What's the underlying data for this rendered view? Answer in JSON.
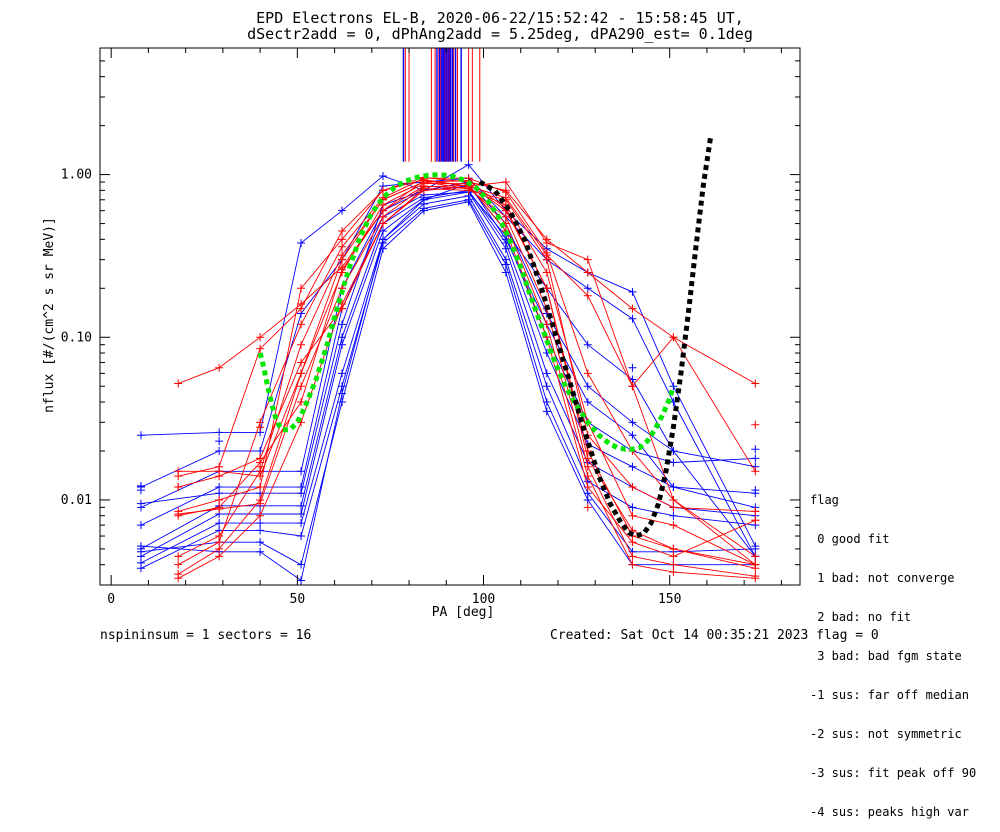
{
  "chart_data": {
    "type": "scatter",
    "title": "EPD Electrons EL-B, 2020-06-22/15:52:42 - 15:58:45 UT,",
    "subtitle": "dSectr2add = 0, dPhAng2add = 5.25deg, dPA290_est=   0.1deg",
    "xlabel": "PA [deg]",
    "ylabel": "nflux [#/(cm^2 s sr MeV)]",
    "xlim": [
      -3,
      185
    ],
    "ylim": [
      0.003,
      6.0
    ],
    "yscale": "log",
    "xticks": [
      0,
      50,
      100,
      150
    ],
    "yticks": [
      {
        "value": 1.0,
        "label": "1.00"
      },
      {
        "value": 0.1,
        "label": "0.10"
      },
      {
        "value": 0.01,
        "label": "0.01"
      }
    ],
    "colors": {
      "red": "#ff0000",
      "blue": "#0000ff",
      "green": "#00e600",
      "black": "#000000"
    },
    "series": [
      {
        "color": "red",
        "x": [
          18,
          29,
          40,
          51,
          62,
          73,
          84,
          96,
          106,
          117,
          128,
          140,
          151,
          173
        ],
        "y": [
          0.052,
          0.065,
          0.1,
          0.16,
          0.27,
          0.6,
          0.92,
          0.85,
          0.72,
          0.32,
          0.18,
          0.05,
          0.1,
          0.052
        ]
      },
      {
        "color": "red",
        "x": [
          18,
          29,
          40,
          51,
          62,
          73,
          84,
          96,
          106,
          117,
          128,
          140,
          151,
          173
        ],
        "y": [
          0.0085,
          0.01,
          0.012,
          0.2,
          0.4,
          0.8,
          0.96,
          0.9,
          0.8,
          0.4,
          0.25,
          0.15,
          0.1,
          0.015
        ]
      },
      {
        "color": "red",
        "x": [
          18,
          29,
          40,
          51,
          62,
          73,
          84,
          96,
          106,
          117,
          128,
          140,
          151,
          173
        ],
        "y": [
          0.014,
          0.016,
          0.085,
          0.15,
          0.45,
          0.8,
          0.93,
          0.85,
          0.9,
          0.38,
          0.3,
          0.05,
          0.01,
          0.004
        ]
      },
      {
        "color": "red",
        "x": [
          18,
          29,
          40,
          51,
          62,
          73,
          84,
          96,
          106,
          117,
          128,
          140,
          151,
          173
        ],
        "y": [
          0.0045,
          0.006,
          0.015,
          0.09,
          0.32,
          0.7,
          0.9,
          0.82,
          0.65,
          0.25,
          0.03,
          0.008,
          0.007,
          0.004
        ]
      },
      {
        "color": "red",
        "x": [
          18,
          29,
          40,
          51,
          62,
          73,
          84,
          96,
          106,
          117,
          128,
          140,
          151,
          173
        ],
        "y": [
          0.0035,
          0.005,
          0.01,
          0.06,
          0.25,
          0.65,
          0.88,
          0.88,
          0.6,
          0.2,
          0.02,
          0.006,
          0.005,
          0.0038
        ]
      },
      {
        "color": "red",
        "x": [
          18,
          29,
          40,
          51,
          62,
          73,
          84,
          96,
          106,
          117,
          128,
          140,
          151,
          173
        ],
        "y": [
          0.008,
          0.009,
          0.017,
          0.04,
          0.26,
          0.6,
          0.85,
          0.82,
          0.55,
          0.15,
          0.016,
          0.0045,
          0.004,
          0.0034
        ]
      },
      {
        "color": "red",
        "x": [
          18,
          29,
          40,
          51,
          62,
          73,
          84,
          96,
          106,
          117,
          128,
          140,
          151,
          173
        ],
        "y": [
          0.0033,
          0.0045,
          0.008,
          0.03,
          0.16,
          0.5,
          0.8,
          0.84,
          0.5,
          0.12,
          0.014,
          0.004,
          0.0036,
          0.0033
        ]
      },
      {
        "color": "red",
        "x": [
          18,
          29,
          40,
          51,
          62,
          73,
          84,
          96,
          106,
          117,
          128,
          140,
          151,
          173
        ],
        "y": [
          0.0082,
          0.0088,
          0.0095,
          0.05,
          0.2,
          0.55,
          0.84,
          0.86,
          0.45,
          0.1,
          0.012,
          0.0055,
          0.0045,
          0.0075
        ]
      },
      {
        "color": "red",
        "x": [
          18,
          29,
          40,
          51,
          62,
          73,
          84,
          96,
          106,
          117,
          128,
          140,
          151,
          173
        ],
        "y": [
          0.012,
          0.014,
          0.018,
          0.07,
          0.15,
          0.5,
          0.82,
          0.8,
          0.7,
          0.3,
          0.025,
          0.012,
          0.009,
          0.0085
        ]
      },
      {
        "color": "red",
        "x": [
          18,
          29,
          40,
          51,
          62,
          73,
          84,
          96,
          106,
          117,
          128,
          140,
          151,
          173
        ],
        "y": [
          0.015,
          0.015,
          0.014,
          0.06,
          0.3,
          0.7,
          0.9,
          0.92,
          0.62,
          0.2,
          0.018,
          0.0065,
          0.005,
          0.004
        ]
      },
      {
        "color": "red",
        "x": [
          18,
          29,
          40,
          51,
          62,
          73,
          84,
          96,
          106,
          117,
          128,
          140,
          151,
          173
        ],
        "y": [
          0.004,
          0.0055,
          0.03,
          0.12,
          0.36,
          0.72,
          0.95,
          0.95,
          0.78,
          0.33,
          0.06,
          0.02,
          0.01,
          0.0045
        ]
      },
      {
        "color": "blue",
        "x": [
          8,
          29,
          40,
          51,
          62,
          73,
          84,
          96,
          106,
          117,
          128,
          140,
          151,
          173
        ],
        "y": [
          0.025,
          0.026,
          0.026,
          0.38,
          0.6,
          0.98,
          0.8,
          1.15,
          0.6,
          0.35,
          0.25,
          0.19,
          0.05,
          0.0052
        ]
      },
      {
        "color": "blue",
        "x": [
          8,
          29,
          40,
          51,
          62,
          73,
          84,
          96,
          106,
          117,
          128,
          140,
          151,
          173
        ],
        "y": [
          0.012,
          0.02,
          0.02,
          0.14,
          0.3,
          0.85,
          0.9,
          0.95,
          0.55,
          0.3,
          0.2,
          0.13,
          0.04,
          0.0045
        ]
      },
      {
        "color": "blue",
        "x": [
          8,
          29,
          40,
          51,
          62,
          73,
          84,
          96,
          106,
          117,
          128,
          140,
          151,
          173
        ],
        "y": [
          0.009,
          0.015,
          0.015,
          0.015,
          0.2,
          0.6,
          0.8,
          0.85,
          0.45,
          0.2,
          0.09,
          0.055,
          0.02,
          0.0045
        ]
      },
      {
        "color": "blue",
        "x": [
          8,
          29,
          40,
          51,
          62,
          73,
          84,
          96,
          106,
          117,
          128,
          140,
          151,
          173
        ],
        "y": [
          0.007,
          0.012,
          0.012,
          0.012,
          0.15,
          0.55,
          0.75,
          0.78,
          0.42,
          0.1,
          0.03,
          0.02,
          0.017,
          0.018
        ]
      },
      {
        "color": "blue",
        "x": [
          8,
          29,
          40,
          51,
          62,
          73,
          84,
          96,
          106,
          117,
          128,
          140,
          151,
          173
        ],
        "y": [
          0.005,
          0.0092,
          0.0092,
          0.0092,
          0.1,
          0.5,
          0.72,
          0.8,
          0.38,
          0.08,
          0.022,
          0.016,
          0.012,
          0.011
        ]
      },
      {
        "color": "blue",
        "x": [
          8,
          29,
          40,
          51,
          62,
          73,
          84,
          96,
          106,
          117,
          128,
          140,
          151,
          173
        ],
        "y": [
          0.0045,
          0.0082,
          0.0082,
          0.0082,
          0.09,
          0.45,
          0.7,
          0.78,
          0.35,
          0.06,
          0.017,
          0.012,
          0.009,
          0.008
        ]
      },
      {
        "color": "blue",
        "x": [
          8,
          29,
          40,
          51,
          62,
          73,
          84,
          96,
          106,
          117,
          128,
          140,
          151,
          173
        ],
        "y": [
          0.0041,
          0.0072,
          0.0072,
          0.0072,
          0.06,
          0.4,
          0.66,
          0.74,
          0.3,
          0.05,
          0.013,
          0.009,
          0.008,
          0.007
        ]
      },
      {
        "color": "blue",
        "x": [
          8,
          29,
          40,
          51,
          62,
          73,
          84,
          96,
          106,
          117,
          128,
          140,
          151,
          173
        ],
        "y": [
          0.0038,
          0.0065,
          0.0065,
          0.006,
          0.05,
          0.38,
          0.62,
          0.7,
          0.28,
          0.04,
          0.011,
          0.0048,
          0.0048,
          0.005
        ]
      },
      {
        "color": "blue",
        "x": [
          8,
          29,
          40,
          51,
          62,
          73,
          84,
          96,
          106,
          117,
          128,
          140,
          151,
          173
        ],
        "y": [
          0.0048,
          0.0055,
          0.0055,
          0.004,
          0.04,
          0.35,
          0.6,
          0.68,
          0.25,
          0.035,
          0.01,
          0.004,
          0.004,
          0.004
        ]
      },
      {
        "color": "blue",
        "x": [
          8,
          29,
          40,
          51,
          62,
          73,
          84,
          96,
          106,
          117,
          128,
          140,
          151,
          173
        ],
        "y": [
          0.0052,
          0.0048,
          0.0048,
          0.0032,
          0.045,
          0.4,
          0.7,
          0.88,
          0.4,
          0.12,
          0.04,
          0.025,
          0.012,
          0.009
        ]
      },
      {
        "color": "blue",
        "x": [
          8,
          29,
          40,
          51,
          62,
          73,
          84,
          96,
          106,
          117,
          128,
          140,
          151,
          173
        ],
        "y": [
          0.0095,
          0.011,
          0.011,
          0.011,
          0.12,
          0.65,
          0.8,
          0.9,
          0.5,
          0.14,
          0.05,
          0.03,
          0.02,
          0.016
        ]
      }
    ],
    "green_fit": {
      "x": [
        40,
        41,
        42,
        43,
        44,
        45,
        46,
        48,
        50,
        52,
        55,
        58,
        61,
        64,
        67,
        70,
        73,
        76,
        79,
        82,
        85,
        88,
        90,
        92,
        95,
        98,
        101,
        104,
        107,
        110,
        113,
        116,
        119,
        122,
        125,
        128,
        131,
        134,
        136,
        138,
        140,
        142,
        144,
        146,
        148,
        150,
        151
      ],
      "y": [
        0.08,
        0.065,
        0.05,
        0.04,
        0.033,
        0.029,
        0.027,
        0.027,
        0.03,
        0.037,
        0.055,
        0.09,
        0.16,
        0.27,
        0.42,
        0.58,
        0.72,
        0.83,
        0.91,
        0.96,
        0.99,
        1.0,
        0.99,
        0.97,
        0.92,
        0.83,
        0.7,
        0.55,
        0.4,
        0.27,
        0.17,
        0.11,
        0.072,
        0.05,
        0.038,
        0.03,
        0.025,
        0.022,
        0.021,
        0.0205,
        0.0205,
        0.021,
        0.023,
        0.027,
        0.033,
        0.042,
        0.05
      ]
    },
    "black_fit": {
      "x": [
        99,
        103,
        107,
        111,
        115,
        119,
        123,
        127,
        131,
        134,
        137,
        139,
        141,
        143,
        145,
        147,
        149,
        151,
        153,
        155,
        157,
        159,
        161
      ],
      "y": [
        0.9,
        0.8,
        0.6,
        0.4,
        0.22,
        0.11,
        0.055,
        0.027,
        0.014,
        0.0095,
        0.0072,
        0.0063,
        0.006,
        0.0062,
        0.0072,
        0.0095,
        0.015,
        0.028,
        0.06,
        0.14,
        0.35,
        0.85,
        1.7
      ]
    },
    "extra_markers": [
      {
        "color": "red",
        "x": 40,
        "y": 0.028
      },
      {
        "color": "red",
        "x": 40,
        "y": 0.018
      },
      {
        "color": "red",
        "x": 40,
        "y": 0.016
      },
      {
        "color": "red",
        "x": 18,
        "y": 0.012
      },
      {
        "color": "red",
        "x": 173,
        "y": 0.029
      },
      {
        "color": "red",
        "x": 173,
        "y": 0.0085
      },
      {
        "color": "red",
        "x": 173,
        "y": 0.0075
      },
      {
        "color": "red",
        "x": 128,
        "y": 0.009
      },
      {
        "color": "blue",
        "x": 8,
        "y": 0.0122
      },
      {
        "color": "blue",
        "x": 8,
        "y": 0.0115
      },
      {
        "color": "blue",
        "x": 29,
        "y": 0.023
      },
      {
        "color": "blue",
        "x": 173,
        "y": 0.0205
      },
      {
        "color": "blue",
        "x": 173,
        "y": 0.0115
      },
      {
        "color": "blue",
        "x": 140,
        "y": 0.065
      }
    ],
    "red_vertical_bars_x": [
      79,
      80,
      86,
      87,
      88,
      88.5,
      89.5,
      90,
      90.5,
      91,
      92,
      93,
      96,
      97,
      99
    ],
    "blue_vertical_bars_x": [
      78.5,
      87.5,
      88.2,
      88.8,
      89.2,
      89.7,
      90.2,
      90.7,
      91.2,
      91.7,
      92.5,
      94
    ],
    "vertical_bars_y": [
      1.2,
      6.0
    ]
  },
  "legend": {
    "title": "flag",
    "items": [
      " 0 good fit",
      " 1 bad: not converge",
      " 2 bad: no fit",
      " 3 bad: bad fgm state",
      "-1 sus: far off median",
      "-2 sus: not symmetric",
      "-3 sus: fit peak off 90",
      "-4 sus: peaks high var"
    ]
  },
  "footer": {
    "left": "nspininsum =  1  sectors = 16",
    "right": "Created: Sat Oct 14 00:35:21 2023   flag = 0"
  }
}
